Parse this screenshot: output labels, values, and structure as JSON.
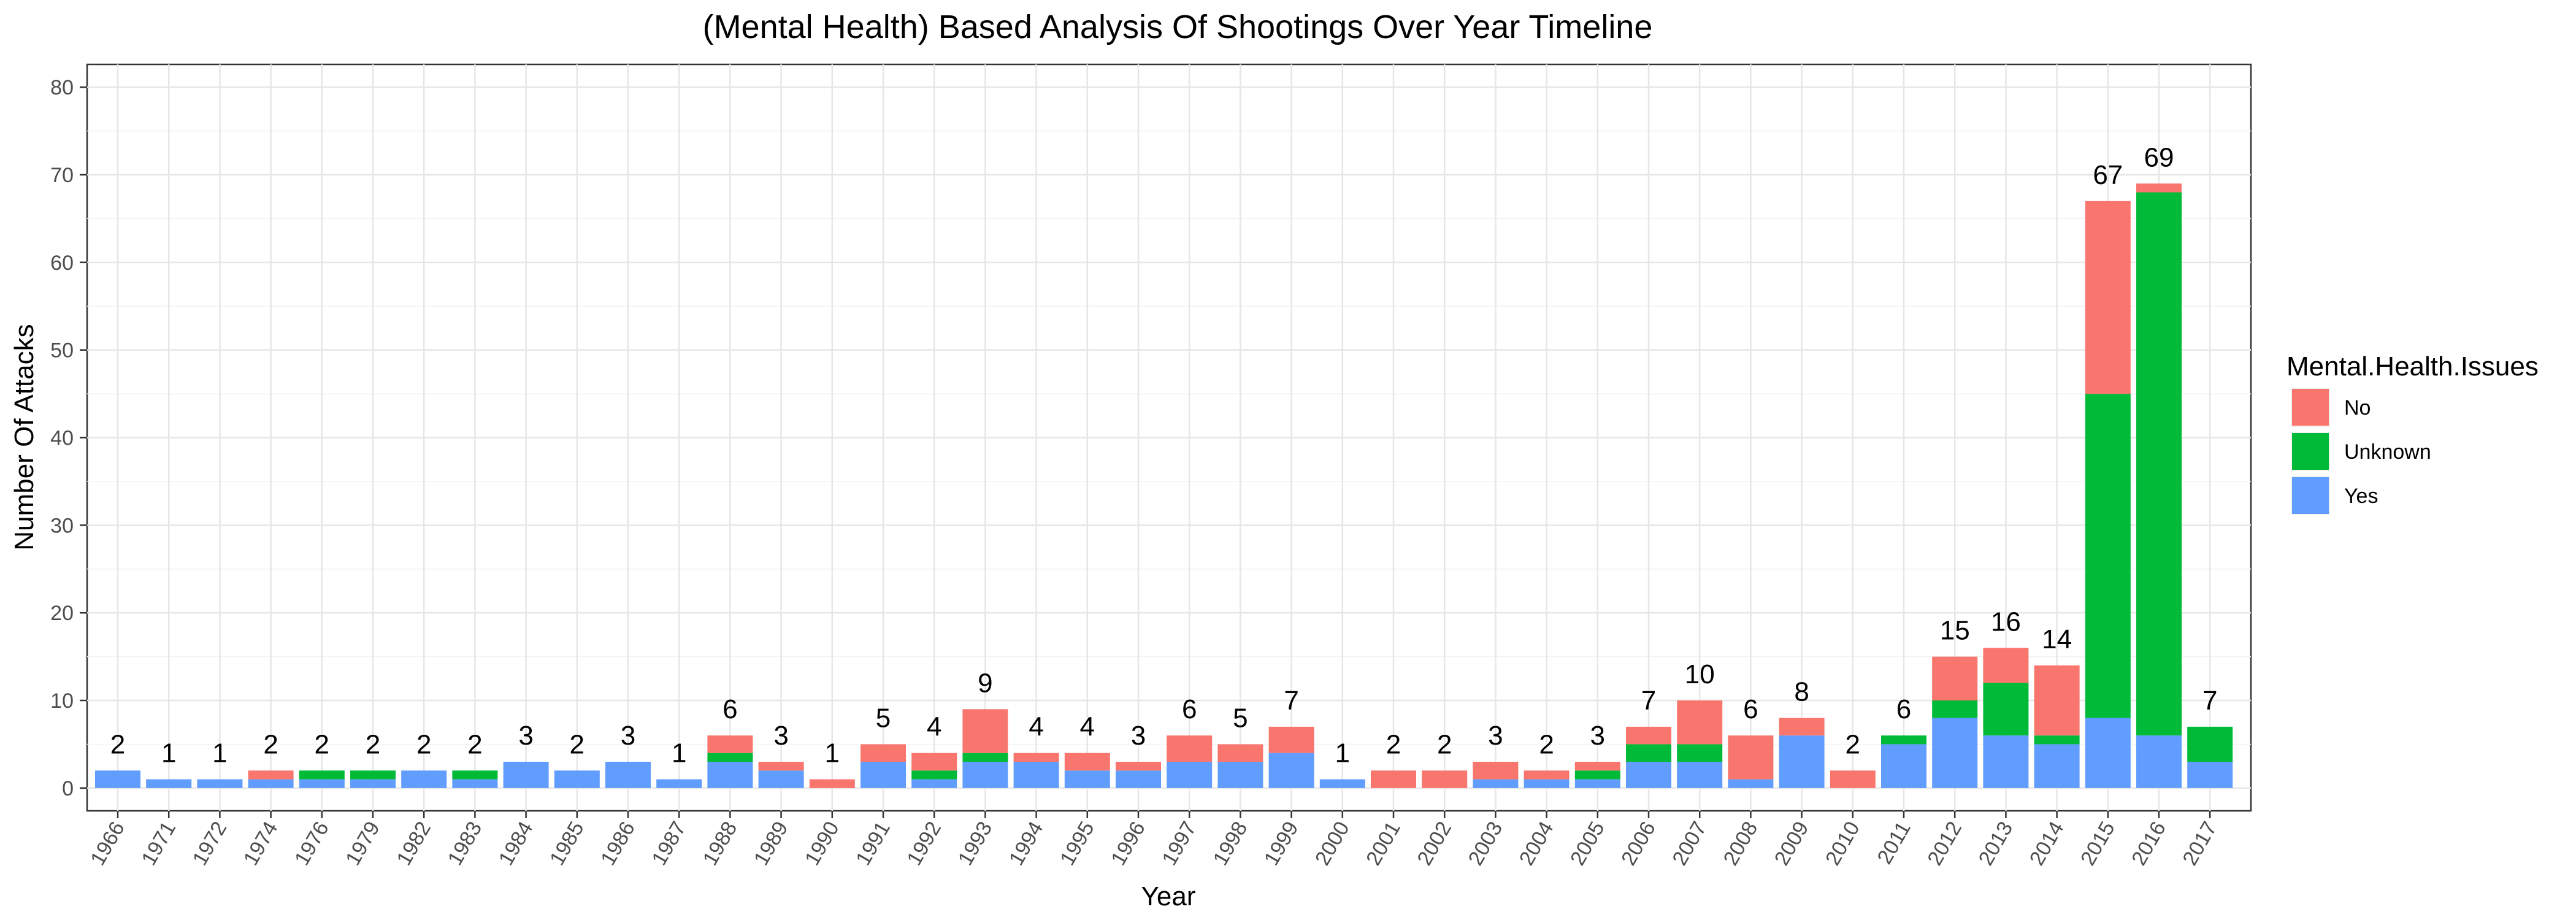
{
  "chart_data": {
    "type": "bar",
    "stacked": true,
    "title": "(Mental Health) Based Analysis Of Shootings Over Year Timeline",
    "xlabel": "Year",
    "ylabel": "Number Of Attacks",
    "ylim": [
      0,
      80
    ],
    "yticks": [
      0,
      10,
      20,
      30,
      40,
      50,
      60,
      70,
      80
    ],
    "grid": true,
    "legend": {
      "title": "Mental.Health.Issues",
      "position": "right"
    },
    "categories": [
      "1966",
      "1971",
      "1972",
      "1974",
      "1976",
      "1979",
      "1982",
      "1983",
      "1984",
      "1985",
      "1986",
      "1987",
      "1988",
      "1989",
      "1990",
      "1991",
      "1992",
      "1993",
      "1994",
      "1995",
      "1996",
      "1997",
      "1998",
      "1999",
      "2000",
      "2001",
      "2002",
      "2003",
      "2004",
      "2005",
      "2006",
      "2007",
      "2008",
      "2009",
      "2010",
      "2011",
      "2012",
      "2013",
      "2014",
      "2015",
      "2016",
      "2017"
    ],
    "series": [
      {
        "name": "Yes",
        "color": "#619CFF",
        "values": [
          2,
          1,
          1,
          1,
          1,
          1,
          2,
          1,
          3,
          2,
          3,
          1,
          3,
          2,
          0,
          3,
          1,
          3,
          3,
          2,
          2,
          3,
          3,
          4,
          1,
          0,
          0,
          1,
          1,
          1,
          3,
          3,
          1,
          6,
          0,
          5,
          8,
          6,
          5,
          8,
          6,
          3
        ]
      },
      {
        "name": "Unknown",
        "color": "#00BA38",
        "values": [
          0,
          0,
          0,
          0,
          1,
          1,
          0,
          1,
          0,
          0,
          0,
          0,
          1,
          0,
          0,
          0,
          1,
          1,
          0,
          0,
          0,
          0,
          0,
          0,
          0,
          0,
          0,
          0,
          0,
          1,
          2,
          2,
          0,
          0,
          0,
          1,
          2,
          6,
          1,
          37,
          62,
          4
        ]
      },
      {
        "name": "No",
        "color": "#F8766D",
        "values": [
          0,
          0,
          0,
          1,
          0,
          0,
          0,
          0,
          0,
          0,
          0,
          0,
          2,
          1,
          1,
          2,
          2,
          5,
          1,
          2,
          1,
          3,
          2,
          3,
          0,
          2,
          2,
          2,
          1,
          1,
          2,
          5,
          5,
          2,
          2,
          0,
          5,
          4,
          8,
          22,
          1,
          0
        ]
      }
    ],
    "totals": [
      2,
      1,
      1,
      2,
      2,
      2,
      2,
      2,
      3,
      2,
      3,
      1,
      6,
      3,
      1,
      5,
      4,
      9,
      4,
      4,
      3,
      6,
      5,
      7,
      1,
      2,
      2,
      3,
      2,
      3,
      7,
      10,
      6,
      8,
      2,
      6,
      15,
      16,
      14,
      67,
      69,
      7
    ]
  }
}
